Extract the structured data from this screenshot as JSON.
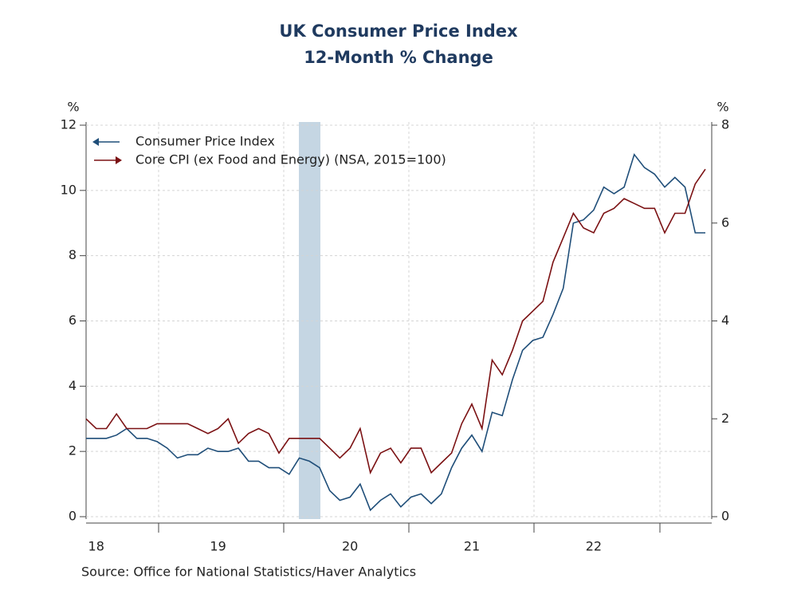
{
  "chart_data": {
    "type": "line",
    "title": "UK Consumer Price Index",
    "subtitle": "12-Month % Change",
    "y_label": "%",
    "y2_label": "%",
    "source": "Source:  Office for National Statistics/Haver Analytics",
    "categories": [
      null,
      "18",
      null,
      null,
      null,
      null,
      null,
      null,
      null,
      null,
      null,
      null,
      null,
      "19",
      null,
      null,
      null,
      null,
      null,
      null,
      null,
      null,
      null,
      null,
      null,
      null,
      "20",
      null,
      null,
      null,
      null,
      null,
      null,
      null,
      null,
      null,
      null,
      null,
      "21",
      null,
      null,
      null,
      null,
      null,
      null,
      null,
      null,
      null,
      null,
      null,
      "22",
      null,
      null,
      null,
      null,
      null,
      null,
      null,
      null,
      null,
      null,
      null
    ],
    "ylim": [
      0,
      12
    ],
    "yticks": [
      0,
      2,
      4,
      6,
      8,
      10,
      12
    ],
    "y2lim": [
      0,
      8
    ],
    "y2ticks": [
      0,
      2,
      4,
      6,
      8
    ],
    "grid": true,
    "legend": "upper left",
    "series": [
      {
        "name": "Consumer Price Index",
        "color": "#1f4e79",
        "axis": "y",
        "values": [
          2.4,
          2.4,
          2.4,
          2.5,
          2.7,
          2.4,
          2.4,
          2.3,
          2.1,
          1.8,
          1.9,
          1.9,
          2.1,
          2.0,
          2.0,
          2.1,
          1.7,
          1.7,
          1.5,
          1.5,
          1.3,
          1.8,
          1.7,
          1.5,
          0.8,
          0.5,
          0.6,
          1.0,
          0.2,
          0.5,
          0.7,
          0.3,
          0.6,
          0.7,
          0.4,
          0.7,
          1.5,
          2.1,
          2.5,
          2.0,
          3.2,
          3.1,
          4.2,
          5.1,
          5.4,
          5.5,
          6.2,
          7.0,
          9.0,
          9.1,
          9.4,
          10.1,
          9.9,
          10.1,
          11.1,
          10.7,
          10.5,
          10.1,
          10.4,
          10.1,
          8.7,
          8.7
        ]
      },
      {
        "name": "Core CPI (ex Food and Energy) (NSA, 2015=100)",
        "color": "#7b1113",
        "axis": "y2",
        "values": [
          2.0,
          1.8,
          1.8,
          2.1,
          1.8,
          1.8,
          1.8,
          1.9,
          1.9,
          1.9,
          1.9,
          1.8,
          1.7,
          1.8,
          2.0,
          1.5,
          1.7,
          1.8,
          1.7,
          1.3,
          1.6,
          1.6,
          1.6,
          1.6,
          1.4,
          1.2,
          1.4,
          1.8,
          0.9,
          1.3,
          1.4,
          1.1,
          1.4,
          1.4,
          0.9,
          1.1,
          1.3,
          1.9,
          2.3,
          1.8,
          3.2,
          2.9,
          3.4,
          4.0,
          4.2,
          4.4,
          5.2,
          5.7,
          6.2,
          5.9,
          5.8,
          6.2,
          6.3,
          6.5,
          6.4,
          6.3,
          6.3,
          5.8,
          6.2,
          6.2,
          6.8,
          7.1
        ]
      }
    ]
  }
}
